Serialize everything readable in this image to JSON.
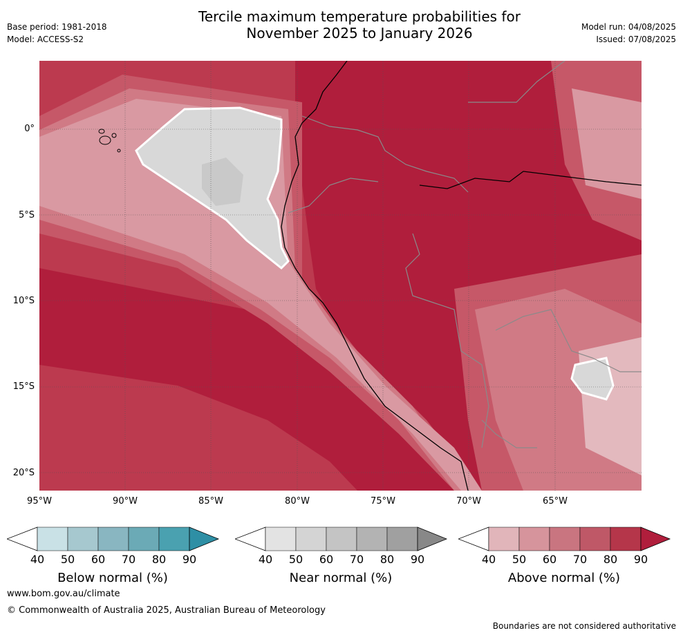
{
  "header": {
    "title_line1": "Tercile maximum temperature probabilities for",
    "title_line2": "November 2025 to January 2026",
    "base_period": "Base period: 1981-2018",
    "model": "Model: ACCESS-S2",
    "model_run": "Model run: 04/08/2025",
    "issued": "Issued: 07/08/2025"
  },
  "map": {
    "region": "South America (Peru / Ecuador)",
    "lat_labels": [
      "0°",
      "5°S",
      "10°S",
      "15°S",
      "20°S"
    ],
    "lon_labels": [
      "95°W",
      "90°W",
      "85°W",
      "80°W",
      "75°W",
      "70°W",
      "65°W"
    ],
    "colors": {
      "above_90": "#b01e3c",
      "above_80": "#bc3a4f",
      "above_70": "#c65868",
      "above_60": "#d07a85",
      "above_50": "#d999a2",
      "above_40": "#e3b9be",
      "near_40": "#d8d8d8",
      "near_50": "#c9c9c9",
      "border": "#8a8a8a",
      "coast": "#000000"
    }
  },
  "colorbars": [
    {
      "label": "Below normal (%)",
      "ticks": [
        "40",
        "50",
        "60",
        "70",
        "80",
        "90"
      ],
      "colors": [
        "#c9e1e6",
        "#a6c8cf",
        "#89b6c1",
        "#6baab6",
        "#4aa1b0",
        "#2e8fa5"
      ]
    },
    {
      "label": "Near normal (%)",
      "ticks": [
        "40",
        "50",
        "60",
        "70",
        "80",
        "90"
      ],
      "colors": [
        "#e3e3e3",
        "#d4d4d4",
        "#c4c4c4",
        "#b3b3b3",
        "#a0a0a0",
        "#888888"
      ]
    },
    {
      "label": "Above normal (%)",
      "ticks": [
        "40",
        "50",
        "60",
        "70",
        "80",
        "90"
      ],
      "colors": [
        "#e1b5ba",
        "#d6949c",
        "#c97580",
        "#bf5867",
        "#b5364a",
        "#b01e3c"
      ]
    }
  ],
  "footer": {
    "website": "www.bom.gov.au/climate",
    "copyright": "© Commonwealth of Australia 2025, Australian Bureau of Meteorology",
    "disclaimer": "Boundaries are not considered authoritative"
  }
}
